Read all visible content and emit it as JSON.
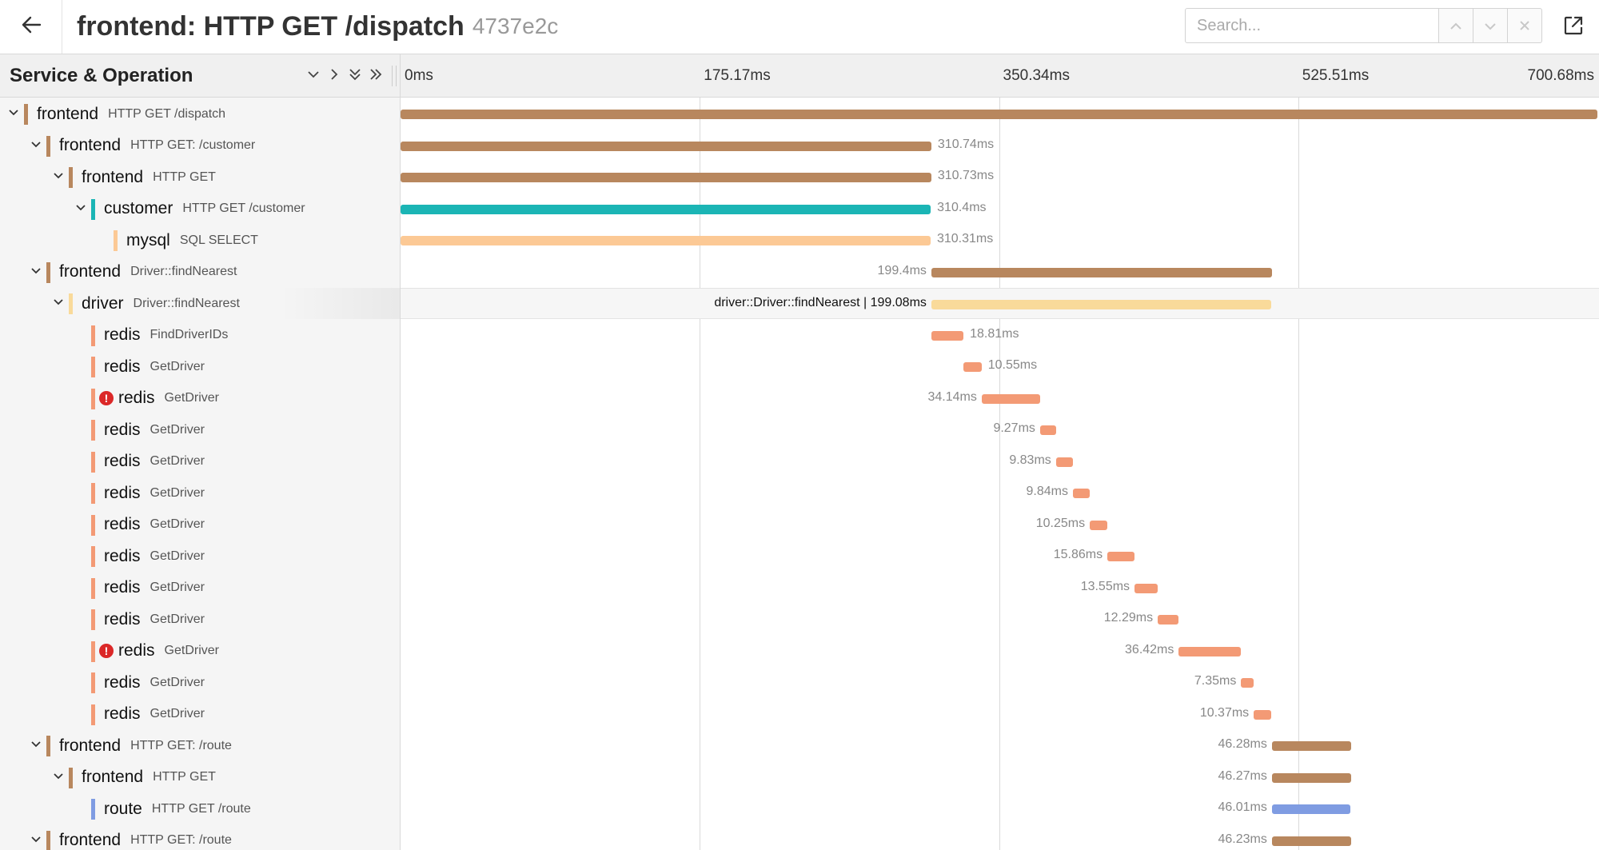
{
  "header": {
    "title": "frontend: HTTP GET /dispatch",
    "trace_id": "4737e2c",
    "search_placeholder": "Search...",
    "search_value": ""
  },
  "left_header": {
    "title": "Service & Operation"
  },
  "timeline": {
    "total_ms": 700.68,
    "ticks": [
      "0ms",
      "175.17ms",
      "350.34ms",
      "525.51ms",
      "700.68ms"
    ]
  },
  "colors": {
    "frontend": "#b8875e",
    "customer": "#1bb5b5",
    "mysql": "#fcc995",
    "driver": "#f9da9a",
    "redis": "#f39a75",
    "route": "#7f9ce2",
    "error": "#db2828"
  },
  "spans": [
    {
      "depth": 0,
      "toggle": "expanded",
      "service": "frontend",
      "operation": "HTTP GET /dispatch",
      "error": false,
      "start_ms": 0,
      "duration_ms": 700.68,
      "duration_label": "",
      "label_side": "none"
    },
    {
      "depth": 1,
      "toggle": "expanded",
      "service": "frontend",
      "operation": "HTTP GET: /customer",
      "error": false,
      "start_ms": 0,
      "duration_ms": 310.74,
      "duration_label": "310.74ms",
      "label_side": "right"
    },
    {
      "depth": 2,
      "toggle": "expanded",
      "service": "frontend",
      "operation": "HTTP GET",
      "error": false,
      "start_ms": 0,
      "duration_ms": 310.73,
      "duration_label": "310.73ms",
      "label_side": "right"
    },
    {
      "depth": 3,
      "toggle": "expanded",
      "service": "customer",
      "operation": "HTTP GET /customer",
      "error": false,
      "start_ms": 0,
      "duration_ms": 310.4,
      "duration_label": "310.4ms",
      "label_side": "right"
    },
    {
      "depth": 4,
      "toggle": "none",
      "service": "mysql",
      "operation": "SQL SELECT",
      "error": false,
      "start_ms": 0,
      "duration_ms": 310.31,
      "duration_label": "310.31ms",
      "label_side": "right"
    },
    {
      "depth": 1,
      "toggle": "expanded",
      "service": "frontend",
      "operation": "Driver::findNearest",
      "error": false,
      "start_ms": 310.74,
      "duration_ms": 199.4,
      "duration_label": "199.4ms",
      "label_side": "left"
    },
    {
      "depth": 2,
      "toggle": "expanded",
      "service": "driver",
      "operation": "Driver::findNearest",
      "error": false,
      "start_ms": 310.74,
      "duration_ms": 199.08,
      "duration_label": "driver::Driver::findNearest | 199.08ms",
      "label_side": "left",
      "highlight": true
    },
    {
      "depth": 3,
      "toggle": "none",
      "service": "redis",
      "operation": "FindDriverIDs",
      "error": false,
      "start_ms": 310.74,
      "duration_ms": 18.81,
      "duration_label": "18.81ms",
      "label_side": "right"
    },
    {
      "depth": 3,
      "toggle": "none",
      "service": "redis",
      "operation": "GetDriver",
      "error": false,
      "start_ms": 329.6,
      "duration_ms": 10.55,
      "duration_label": "10.55ms",
      "label_side": "right"
    },
    {
      "depth": 3,
      "toggle": "none",
      "service": "redis",
      "operation": "GetDriver",
      "error": true,
      "start_ms": 340.2,
      "duration_ms": 34.14,
      "duration_label": "34.14ms",
      "label_side": "left"
    },
    {
      "depth": 3,
      "toggle": "none",
      "service": "redis",
      "operation": "GetDriver",
      "error": false,
      "start_ms": 374.4,
      "duration_ms": 9.27,
      "duration_label": "9.27ms",
      "label_side": "left"
    },
    {
      "depth": 3,
      "toggle": "none",
      "service": "redis",
      "operation": "GetDriver",
      "error": false,
      "start_ms": 383.7,
      "duration_ms": 9.83,
      "duration_label": "9.83ms",
      "label_side": "left"
    },
    {
      "depth": 3,
      "toggle": "none",
      "service": "redis",
      "operation": "GetDriver",
      "error": false,
      "start_ms": 393.6,
      "duration_ms": 9.84,
      "duration_label": "9.84ms",
      "label_side": "left"
    },
    {
      "depth": 3,
      "toggle": "none",
      "service": "redis",
      "operation": "GetDriver",
      "error": false,
      "start_ms": 403.5,
      "duration_ms": 10.25,
      "duration_label": "10.25ms",
      "label_side": "left"
    },
    {
      "depth": 3,
      "toggle": "none",
      "service": "redis",
      "operation": "GetDriver",
      "error": false,
      "start_ms": 413.8,
      "duration_ms": 15.86,
      "duration_label": "15.86ms",
      "label_side": "left"
    },
    {
      "depth": 3,
      "toggle": "none",
      "service": "redis",
      "operation": "GetDriver",
      "error": false,
      "start_ms": 429.7,
      "duration_ms": 13.55,
      "duration_label": "13.55ms",
      "label_side": "left"
    },
    {
      "depth": 3,
      "toggle": "none",
      "service": "redis",
      "operation": "GetDriver",
      "error": false,
      "start_ms": 443.3,
      "duration_ms": 12.29,
      "duration_label": "12.29ms",
      "label_side": "left"
    },
    {
      "depth": 3,
      "toggle": "none",
      "service": "redis",
      "operation": "GetDriver",
      "error": true,
      "start_ms": 455.6,
      "duration_ms": 36.42,
      "duration_label": "36.42ms",
      "label_side": "left"
    },
    {
      "depth": 3,
      "toggle": "none",
      "service": "redis",
      "operation": "GetDriver",
      "error": false,
      "start_ms": 492.1,
      "duration_ms": 7.35,
      "duration_label": "7.35ms",
      "label_side": "left"
    },
    {
      "depth": 3,
      "toggle": "none",
      "service": "redis",
      "operation": "GetDriver",
      "error": false,
      "start_ms": 499.5,
      "duration_ms": 10.37,
      "duration_label": "10.37ms",
      "label_side": "left"
    },
    {
      "depth": 1,
      "toggle": "expanded",
      "service": "frontend",
      "operation": "HTTP GET: /route",
      "error": false,
      "start_ms": 510.1,
      "duration_ms": 46.28,
      "duration_label": "46.28ms",
      "label_side": "left"
    },
    {
      "depth": 2,
      "toggle": "expanded",
      "service": "frontend",
      "operation": "HTTP GET",
      "error": false,
      "start_ms": 510.1,
      "duration_ms": 46.27,
      "duration_label": "46.27ms",
      "label_side": "left"
    },
    {
      "depth": 3,
      "toggle": "none",
      "service": "route",
      "operation": "HTTP GET /route",
      "error": false,
      "start_ms": 510.1,
      "duration_ms": 46.01,
      "duration_label": "46.01ms",
      "label_side": "left"
    },
    {
      "depth": 1,
      "toggle": "expanded",
      "service": "frontend",
      "operation": "HTTP GET: /route",
      "error": false,
      "start_ms": 510.1,
      "duration_ms": 46.23,
      "duration_label": "46.23ms",
      "label_side": "left"
    }
  ]
}
